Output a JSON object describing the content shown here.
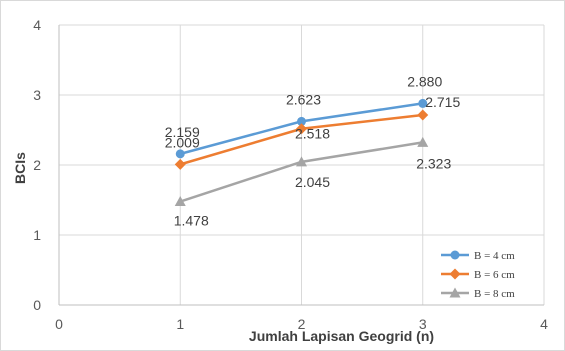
{
  "chart_data": {
    "type": "line",
    "title": "",
    "xlabel": "Jumlah Lapisan Geogrid (n)",
    "ylabel": "BCIs",
    "xlim": [
      0,
      4
    ],
    "ylim": [
      0,
      4
    ],
    "x_ticks": [
      "0",
      "1",
      "2",
      "3",
      "4"
    ],
    "y_ticks": [
      "0",
      "1",
      "2",
      "3",
      "4"
    ],
    "grid": true,
    "legend_position": "bottom-right",
    "series": [
      {
        "name": "B = 4 cm",
        "color": "#5b9bd5",
        "marker": "circle",
        "x": [
          1,
          2,
          3
        ],
        "y": [
          2.159,
          2.623,
          2.88
        ],
        "labels": [
          "2.159",
          "2.623",
          "2.880"
        ]
      },
      {
        "name": "B = 6 cm",
        "color": "#ed7d31",
        "marker": "diamond",
        "x": [
          1,
          2,
          3
        ],
        "y": [
          2.009,
          2.518,
          2.715
        ],
        "labels": [
          "2.009",
          "2.518",
          "2.715"
        ]
      },
      {
        "name": "B = 8 cm",
        "color": "#a5a5a5",
        "marker": "triangle",
        "x": [
          1,
          2,
          3
        ],
        "y": [
          1.478,
          2.045,
          2.323
        ],
        "labels": [
          "1.478",
          "2.045",
          "2.323"
        ]
      }
    ]
  }
}
